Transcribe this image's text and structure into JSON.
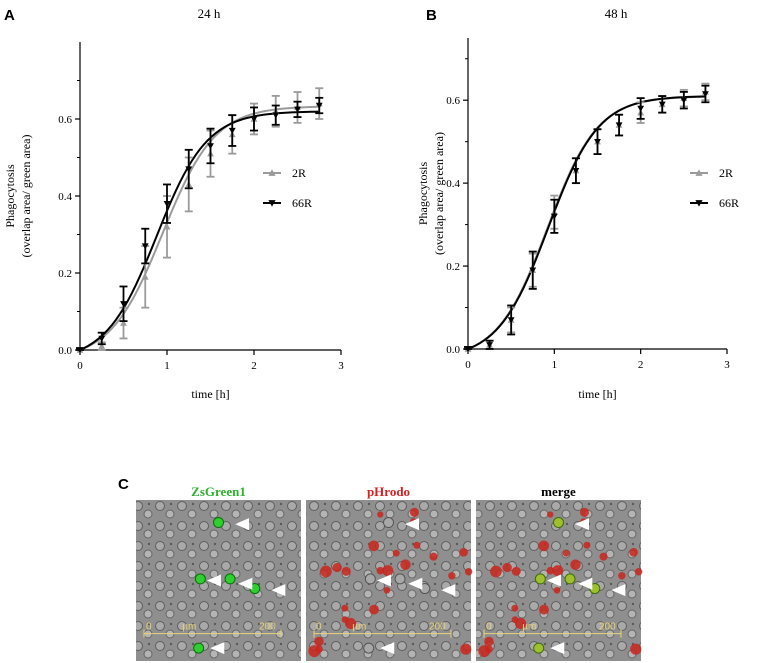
{
  "chart_data": [
    {
      "panel": "A",
      "type": "line",
      "title": "24 h",
      "xlabel": "time [h]",
      "ylabel": [
        "Phagocytosis",
        "(overlap area/ green area)"
      ],
      "xlim": [
        0,
        3
      ],
      "ylim": [
        0,
        0.8
      ],
      "xticks": [
        0,
        1,
        2,
        3
      ],
      "yticks": [
        0.0,
        0.2,
        0.4,
        0.6
      ],
      "ytick_labels": [
        "0.0",
        "0.2",
        "0.4",
        "0.6"
      ],
      "series": [
        {
          "name": "2R",
          "color": "#9b9b9b",
          "marker": "triangle-up",
          "x": [
            0,
            0.25,
            0.5,
            0.75,
            1.0,
            1.25,
            1.5,
            1.75,
            2.0,
            2.25,
            2.5,
            2.75
          ],
          "y": [
            0.0,
            0.01,
            0.07,
            0.19,
            0.32,
            0.43,
            0.51,
            0.56,
            0.6,
            0.62,
            0.63,
            0.64
          ],
          "err": [
            0.005,
            0.01,
            0.04,
            0.08,
            0.08,
            0.07,
            0.06,
            0.05,
            0.04,
            0.04,
            0.04,
            0.04
          ]
        },
        {
          "name": "66R",
          "color": "#000000",
          "marker": "triangle-down",
          "x": [
            0,
            0.25,
            0.5,
            0.75,
            1.0,
            1.25,
            1.5,
            1.75,
            2.0,
            2.25,
            2.5,
            2.75
          ],
          "y": [
            0.0,
            0.03,
            0.12,
            0.27,
            0.38,
            0.47,
            0.53,
            0.57,
            0.6,
            0.61,
            0.625,
            0.635
          ],
          "err": [
            0.005,
            0.015,
            0.045,
            0.045,
            0.05,
            0.05,
            0.045,
            0.04,
            0.03,
            0.025,
            0.02,
            0.02
          ]
        }
      ],
      "fit_curves": [
        {
          "name": "2R",
          "color": "#9b9b9b",
          "xmid": 0.95,
          "slope": 0.3,
          "ymax": 0.66
        },
        {
          "name": "66R",
          "color": "#000000",
          "xmid": 0.88,
          "slope": 0.29,
          "ymax": 0.65
        }
      ],
      "legend": {
        "placement": "right-middle",
        "entries": [
          "2R",
          "66R"
        ]
      }
    },
    {
      "panel": "B",
      "type": "line",
      "title": "48 h",
      "xlabel": "time [h]",
      "ylabel": [
        "Phagocytosis",
        "(overlap area/ green area)"
      ],
      "xlim": [
        0,
        3
      ],
      "ylim": [
        0,
        0.75
      ],
      "xticks": [
        0,
        1,
        2,
        3
      ],
      "yticks": [
        0.0,
        0.2,
        0.4,
        0.6
      ],
      "ytick_labels": [
        "0.0",
        "0.2",
        "0.4",
        "0.6"
      ],
      "series": [
        {
          "name": "2R",
          "color": "#9b9b9b",
          "marker": "triangle-up",
          "x": [
            0,
            0.25,
            0.5,
            0.75,
            1.0,
            1.25,
            1.5,
            1.75,
            2.0,
            2.25,
            2.5,
            2.75
          ],
          "y": [
            0.0,
            0.01,
            0.07,
            0.19,
            0.33,
            0.43,
            0.5,
            0.54,
            0.57,
            0.59,
            0.605,
            0.62
          ],
          "err": [
            0.005,
            0.01,
            0.03,
            0.04,
            0.04,
            0.03,
            0.03,
            0.025,
            0.025,
            0.02,
            0.02,
            0.02
          ]
        },
        {
          "name": "66R",
          "color": "#000000",
          "marker": "triangle-down",
          "x": [
            0,
            0.25,
            0.5,
            0.75,
            1.0,
            1.25,
            1.5,
            1.75,
            2.0,
            2.25,
            2.5,
            2.75
          ],
          "y": [
            0.0,
            0.01,
            0.07,
            0.19,
            0.32,
            0.43,
            0.5,
            0.54,
            0.58,
            0.59,
            0.6,
            0.615
          ],
          "err": [
            0.005,
            0.01,
            0.035,
            0.045,
            0.04,
            0.03,
            0.03,
            0.025,
            0.025,
            0.02,
            0.02,
            0.02
          ]
        }
      ],
      "fit_curves": [
        {
          "name": "2R",
          "color": "#9b9b9b",
          "xmid": 0.92,
          "slope": 0.29,
          "ymax": 0.635
        },
        {
          "name": "66R",
          "color": "#000000",
          "xmid": 0.93,
          "slope": 0.29,
          "ymax": 0.635
        }
      ],
      "legend": {
        "placement": "right-middle",
        "entries": [
          "2R",
          "66R"
        ]
      }
    }
  ],
  "panel_c": {
    "letter": "C",
    "panels": [
      {
        "label": "ZsGreen1",
        "color": "#2fb02f",
        "overlay": "green"
      },
      {
        "label": "pHrodo",
        "color": "#d42020",
        "overlay": "red"
      },
      {
        "label": "merge",
        "color": "#000000",
        "overlay": "merge"
      }
    ],
    "scale_bar": {
      "start_label": "0",
      "unit_label": "µm",
      "end_label": "200"
    }
  },
  "colors": {
    "series_2R": "#9b9b9b",
    "series_66R": "#000000",
    "micrograph_bg": "#8a8a8a",
    "scale_bar": "#e8d27a"
  }
}
